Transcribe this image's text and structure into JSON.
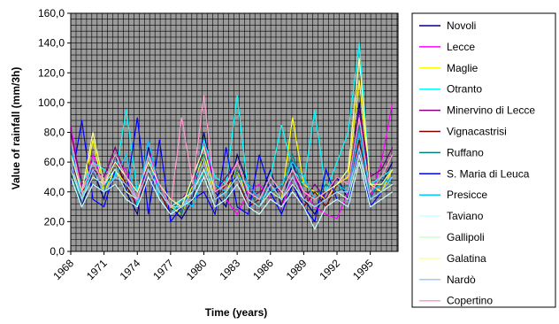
{
  "chart_data": {
    "type": "line",
    "xlabel": "Time (years)",
    "ylabel": "Value of rainfall (mm/3h)",
    "ylim": [
      0,
      160
    ],
    "y_ticks": [
      "0,0",
      "20,0",
      "40,0",
      "60,0",
      "80,0",
      "100,0",
      "120,0",
      "140,0",
      "160,0"
    ],
    "x_ticks": [
      "1968",
      "1971",
      "1974",
      "1977",
      "1980",
      "1983",
      "1986",
      "1989",
      "1992",
      "1995"
    ],
    "xlim": [
      1968,
      1997.5
    ],
    "grid": true,
    "legend_position": "right",
    "plot_background": "#9a9a9a",
    "grid_color": "#000000",
    "series": [
      {
        "name": "Novoli",
        "color": "#000080",
        "x": [
          1968,
          1969,
          1970,
          1971,
          1972,
          1973,
          1974,
          1975,
          1976,
          1977,
          1978,
          1979,
          1980,
          1981,
          1982,
          1983,
          1984,
          1985,
          1986,
          1987,
          1988,
          1989,
          1990,
          1991,
          1992,
          1993,
          1994,
          1995,
          1996,
          1997
        ],
        "y": [
          70,
          30,
          55,
          35,
          65,
          40,
          25,
          70,
          45,
          30,
          22,
          35,
          80,
          40,
          30,
          65,
          45,
          35,
          55,
          30,
          60,
          35,
          25,
          40,
          50,
          35,
          100,
          40,
          45,
          60
        ]
      },
      {
        "name": "Lecce",
        "color": "#ff00ff",
        "x": [
          1968,
          1969,
          1970,
          1971,
          1972,
          1973,
          1974,
          1975,
          1976,
          1977,
          1978,
          1979,
          1980,
          1981,
          1982,
          1983,
          1984,
          1985,
          1986,
          1987,
          1988,
          1989,
          1990,
          1991,
          1992,
          1993,
          1994,
          1995,
          1996,
          1997
        ],
        "y": [
          85,
          40,
          65,
          45,
          60,
          55,
          30,
          75,
          35,
          25,
          30,
          40,
          75,
          45,
          35,
          25,
          40,
          45,
          35,
          30,
          50,
          40,
          30,
          25,
          22,
          40,
          85,
          35,
          60,
          100
        ]
      },
      {
        "name": "Maglie",
        "color": "#ffff00",
        "x": [
          1968,
          1969,
          1970,
          1971,
          1972,
          1973,
          1974,
          1975,
          1976,
          1977,
          1978,
          1979,
          1980,
          1981,
          1982,
          1983,
          1984,
          1985,
          1986,
          1987,
          1988,
          1989,
          1990,
          1991,
          1992,
          1993,
          1994,
          1995,
          1996,
          1997
        ],
        "y": [
          60,
          35,
          75,
          40,
          55,
          45,
          35,
          55,
          40,
          30,
          25,
          45,
          65,
          35,
          40,
          55,
          35,
          30,
          45,
          35,
          90,
          45,
          40,
          35,
          45,
          50,
          115,
          45,
          40,
          55
        ]
      },
      {
        "name": "Otranto",
        "color": "#00ffff",
        "x": [
          1968,
          1969,
          1970,
          1971,
          1972,
          1973,
          1974,
          1975,
          1976,
          1977,
          1978,
          1979,
          1980,
          1981,
          1982,
          1983,
          1984,
          1985,
          1986,
          1987,
          1988,
          1989,
          1990,
          1991,
          1992,
          1993,
          1994,
          1995,
          1996,
          1997
        ],
        "y": [
          65,
          45,
          60,
          55,
          50,
          95,
          40,
          65,
          35,
          25,
          35,
          40,
          75,
          50,
          45,
          105,
          40,
          35,
          50,
          85,
          55,
          45,
          95,
          40,
          60,
          80,
          140,
          45,
          50,
          55
        ]
      },
      {
        "name": "Minervino di Lecce",
        "color": "#800080",
        "x": [
          1968,
          1969,
          1970,
          1971,
          1972,
          1973,
          1974,
          1975,
          1976,
          1977,
          1978,
          1979,
          1980,
          1981,
          1982,
          1983,
          1984,
          1985,
          1986,
          1987,
          1988,
          1989,
          1990,
          1991,
          1992,
          1993,
          1994,
          1995,
          1996,
          1997
        ],
        "y": [
          80,
          45,
          55,
          50,
          70,
          50,
          35,
          60,
          45,
          30,
          35,
          45,
          70,
          40,
          50,
          60,
          35,
          40,
          45,
          40,
          55,
          35,
          45,
          35,
          50,
          45,
          95,
          50,
          55,
          70
        ]
      },
      {
        "name": "Vignacastrisi",
        "color": "#800000",
        "x": [
          1968,
          1969,
          1970,
          1971,
          1972,
          1973,
          1974,
          1975,
          1976,
          1977,
          1978,
          1979,
          1980,
          1981,
          1982,
          1983,
          1984,
          1985,
          1986,
          1987,
          1988,
          1989,
          1990,
          1991,
          1992,
          1993,
          1994,
          1995,
          1996,
          1997
        ],
        "y": [
          60,
          40,
          50,
          45,
          60,
          45,
          30,
          55,
          40,
          25,
          30,
          40,
          60,
          35,
          45,
          50,
          30,
          35,
          40,
          35,
          45,
          30,
          40,
          30,
          45,
          40,
          75,
          40,
          45,
          55
        ]
      },
      {
        "name": "Ruffano",
        "color": "#008080",
        "x": [
          1968,
          1969,
          1970,
          1971,
          1972,
          1973,
          1974,
          1975,
          1976,
          1977,
          1978,
          1979,
          1980,
          1981,
          1982,
          1983,
          1984,
          1985,
          1986,
          1987,
          1988,
          1989,
          1990,
          1991,
          1992,
          1993,
          1994,
          1995,
          1996,
          1997
        ],
        "y": [
          55,
          30,
          45,
          40,
          65,
          50,
          40,
          60,
          45,
          35,
          25,
          50,
          65,
          45,
          35,
          55,
          40,
          30,
          50,
          40,
          65,
          40,
          35,
          45,
          40,
          45,
          85,
          35,
          50,
          45
        ]
      },
      {
        "name": "S. Maria di Leuca",
        "color": "#0000ff",
        "x": [
          1968,
          1969,
          1970,
          1971,
          1972,
          1973,
          1974,
          1975,
          1976,
          1977,
          1978,
          1979,
          1980,
          1981,
          1982,
          1983,
          1984,
          1985,
          1986,
          1987,
          1988,
          1989,
          1990,
          1991,
          1992,
          1993,
          1994,
          1995,
          1996,
          1997
        ],
        "y": [
          45,
          88,
          35,
          30,
          55,
          40,
          90,
          25,
          75,
          20,
          30,
          35,
          40,
          25,
          70,
          30,
          25,
          65,
          40,
          25,
          45,
          30,
          20,
          55,
          35,
          30,
          70,
          30,
          40,
          50
        ]
      },
      {
        "name": "Presicce",
        "color": "#00ccff",
        "x": [
          1968,
          1969,
          1970,
          1971,
          1972,
          1973,
          1974,
          1975,
          1976,
          1977,
          1978,
          1979,
          1980,
          1981,
          1982,
          1983,
          1984,
          1985,
          1986,
          1987,
          1988,
          1989,
          1990,
          1991,
          1992,
          1993,
          1994,
          1995,
          1996,
          1997
        ],
        "y": [
          70,
          35,
          60,
          45,
          50,
          65,
          30,
          75,
          40,
          30,
          35,
          30,
          55,
          45,
          40,
          50,
          45,
          35,
          40,
          45,
          60,
          50,
          35,
          40,
          45,
          40,
          80,
          40,
          45,
          50
        ]
      },
      {
        "name": "Taviano",
        "color": "#ccffff",
        "x": [
          1968,
          1969,
          1970,
          1971,
          1972,
          1973,
          1974,
          1975,
          1976,
          1977,
          1978,
          1979,
          1980,
          1981,
          1982,
          1983,
          1984,
          1985,
          1986,
          1987,
          1988,
          1989,
          1990,
          1991,
          1992,
          1993,
          1994,
          1995,
          1996,
          1997
        ],
        "y": [
          50,
          30,
          45,
          40,
          45,
          35,
          30,
          50,
          35,
          25,
          30,
          35,
          50,
          30,
          35,
          45,
          30,
          25,
          35,
          30,
          40,
          30,
          15,
          30,
          35,
          30,
          60,
          30,
          35,
          40
        ]
      },
      {
        "name": "Gallipoli",
        "color": "#ccffcc",
        "x": [
          1968,
          1969,
          1970,
          1971,
          1972,
          1973,
          1974,
          1975,
          1976,
          1977,
          1978,
          1979,
          1980,
          1981,
          1982,
          1983,
          1984,
          1985,
          1986,
          1987,
          1988,
          1989,
          1990,
          1991,
          1992,
          1993,
          1994,
          1995,
          1996,
          1997
        ],
        "y": [
          55,
          35,
          50,
          45,
          55,
          40,
          35,
          55,
          40,
          30,
          35,
          40,
          55,
          35,
          40,
          50,
          35,
          30,
          40,
          35,
          45,
          35,
          30,
          35,
          40,
          35,
          65,
          35,
          40,
          45
        ]
      },
      {
        "name": "Galatina",
        "color": "#ffff99",
        "x": [
          1968,
          1969,
          1970,
          1971,
          1972,
          1973,
          1974,
          1975,
          1976,
          1977,
          1978,
          1979,
          1980,
          1981,
          1982,
          1983,
          1984,
          1985,
          1986,
          1987,
          1988,
          1989,
          1990,
          1991,
          1992,
          1993,
          1994,
          1995,
          1996,
          1997
        ],
        "y": [
          65,
          40,
          80,
          45,
          60,
          50,
          40,
          60,
          45,
          35,
          30,
          50,
          70,
          40,
          45,
          60,
          40,
          35,
          50,
          40,
          55,
          40,
          35,
          40,
          45,
          55,
          130,
          45,
          45,
          55
        ]
      },
      {
        "name": "Nardò",
        "color": "#99ccff",
        "x": [
          1968,
          1969,
          1970,
          1971,
          1972,
          1973,
          1974,
          1975,
          1976,
          1977,
          1978,
          1979,
          1980,
          1981,
          1982,
          1983,
          1984,
          1985,
          1986,
          1987,
          1988,
          1989,
          1990,
          1991,
          1992,
          1993,
          1994,
          1995,
          1996,
          1997
        ],
        "y": [
          60,
          35,
          55,
          40,
          50,
          45,
          35,
          55,
          40,
          30,
          30,
          40,
          60,
          35,
          40,
          50,
          35,
          30,
          45,
          35,
          50,
          35,
          30,
          35,
          40,
          40,
          70,
          35,
          40,
          50
        ]
      },
      {
        "name": "Copertino",
        "color": "#ff99cc",
        "x": [
          1968,
          1969,
          1970,
          1971,
          1972,
          1973,
          1974,
          1975,
          1976,
          1977,
          1978,
          1979,
          1980,
          1981,
          1982,
          1983,
          1984,
          1985,
          1986,
          1987,
          1988,
          1989,
          1990,
          1991,
          1992,
          1993,
          1994,
          1995,
          1996,
          1997
        ],
        "y": [
          75,
          40,
          60,
          45,
          65,
          50,
          35,
          65,
          45,
          30,
          90,
          45,
          105,
          40,
          45,
          60,
          40,
          35,
          50,
          40,
          55,
          40,
          35,
          40,
          50,
          45,
          90,
          40,
          50,
          65
        ]
      }
    ]
  }
}
